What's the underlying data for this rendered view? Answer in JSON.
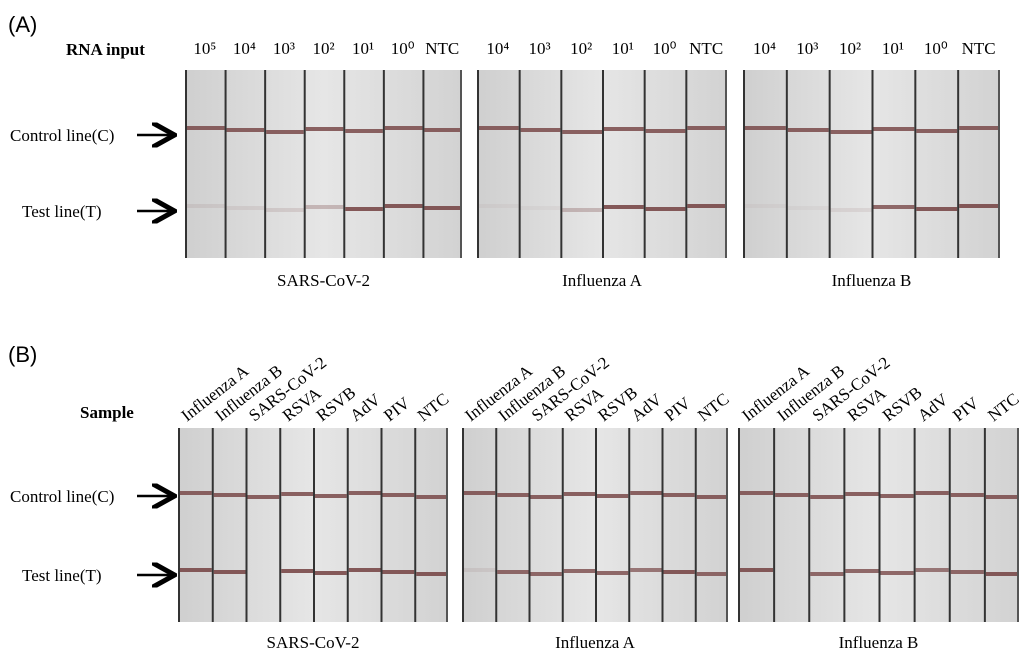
{
  "panel_a": {
    "label": "(A)",
    "input_label": "RNA input",
    "control_label": "Control line(C)",
    "test_label": "Test line(T)",
    "strips": [
      {
        "name": "SARS-CoV-2",
        "lanes": [
          "10⁵",
          "10⁴",
          "10³",
          "10²",
          "10¹",
          "10⁰",
          "NTC"
        ]
      },
      {
        "name": "Influenza A",
        "lanes": [
          "10⁴",
          "10³",
          "10²",
          "10¹",
          "10⁰",
          "NTC"
        ]
      },
      {
        "name": "Influenza B",
        "lanes": [
          "10⁴",
          "10³",
          "10²",
          "10¹",
          "10⁰",
          "NTC"
        ]
      }
    ]
  },
  "panel_b": {
    "label": "(B)",
    "sample_label": "Sample",
    "control_label": "Control line(C)",
    "test_label": "Test line(T)",
    "strips": [
      {
        "name": "SARS-CoV-2",
        "lanes": [
          "Influenza A",
          "Influenza B",
          "SARS-CoV-2",
          "RSVA",
          "RSVB",
          "AdV",
          "PIV",
          "NTC"
        ]
      },
      {
        "name": "Influenza A",
        "lanes": [
          "Influenza A",
          "Influenza B",
          "SARS-CoV-2",
          "RSVA",
          "RSVB",
          "AdV",
          "PIV",
          "NTC"
        ]
      },
      {
        "name": "Influenza B",
        "lanes": [
          "Influenza A",
          "Influenza B",
          "SARS-CoV-2",
          "RSVA",
          "RSVB",
          "AdV",
          "PIV",
          "NTC"
        ]
      }
    ]
  }
}
